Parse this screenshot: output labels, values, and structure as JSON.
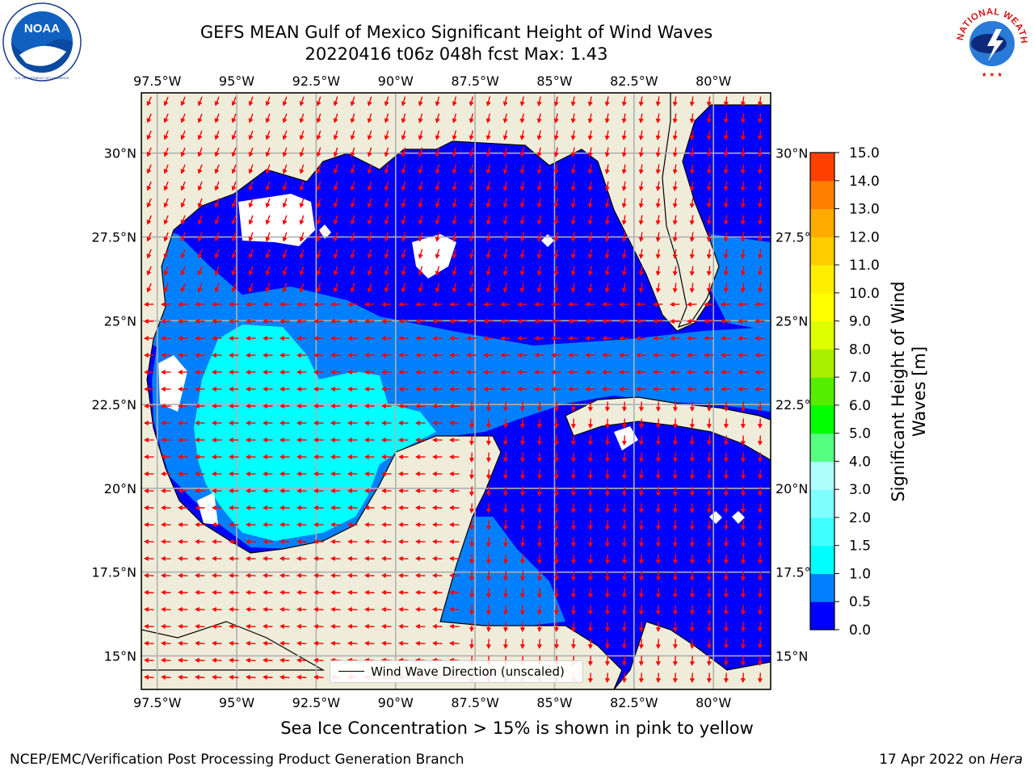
{
  "title_line1": "GEFS MEAN Gulf of Mexico Significant Height of Wind Waves",
  "title_line2": "20220416 t06z 048h fcst   Max: 1.43",
  "noaa_logo": {
    "name": "noaa-logo-icon",
    "text": "NOAA",
    "ring_text": "NATIONAL OCEANIC AND ATMOSPHERIC ADMINISTRATION · U.S. DEPARTMENT OF COMMERCE"
  },
  "nws_logo": {
    "name": "nws-logo-icon",
    "ring_text": "NATIONAL WEATHER SERVICE"
  },
  "map": {
    "lon_ticks": [
      "97.5°W",
      "95°W",
      "92.5°W",
      "90°W",
      "87.5°W",
      "85°W",
      "82.5°W",
      "80°W"
    ],
    "lon_values": [
      -97.5,
      -95,
      -92.5,
      -90,
      -87.5,
      -85,
      -82.5,
      -80
    ],
    "lat_ticks": [
      "30°N",
      "27.5°N",
      "25°N",
      "22.5°N",
      "20°N",
      "17.5°N",
      "15°N"
    ],
    "lat_values": [
      30,
      27.5,
      25,
      22.5,
      20,
      17.5,
      15
    ],
    "extent": {
      "lon_min": -98,
      "lon_max": -78.2,
      "lat_min": 14,
      "lat_max": 31.8
    },
    "colors": {
      "land": "#efedda",
      "water_base": "#0000ff",
      "grid": "#b0b0b0",
      "arrow": "#ff0000"
    },
    "legend_label": "Wind Wave Direction (unscaled)"
  },
  "colorbar": {
    "title_line1": "Significant Height of Wind",
    "title_line2": "Waves [m]",
    "levels": [
      "0.0",
      "0.5",
      "1.0",
      "1.5",
      "2.0",
      "3.0",
      "4.0",
      "5.0",
      "6.0",
      "7.0",
      "8.0",
      "9.0",
      "10.0",
      "11.0",
      "12.0",
      "13.0",
      "14.0",
      "15.0"
    ],
    "colors": [
      "#0000ff",
      "#0080ff",
      "#00ffff",
      "#40ffff",
      "#80ffff",
      "#b0ffff",
      "#55ff80",
      "#00ff00",
      "#55ee00",
      "#aaee00",
      "#ddff00",
      "#ffff00",
      "#ffee00",
      "#ffcc00",
      "#ffaa00",
      "#ff8000",
      "#ff4000"
    ]
  },
  "bottom_note": "Sea Ice Concentration > 15% is shown in pink to yellow",
  "credit_left": "NCEP/EMC/Verification Post Processing Product Generation Branch",
  "credit_right_date": "17 Apr 2022 on ",
  "credit_right_host": "Hera"
}
